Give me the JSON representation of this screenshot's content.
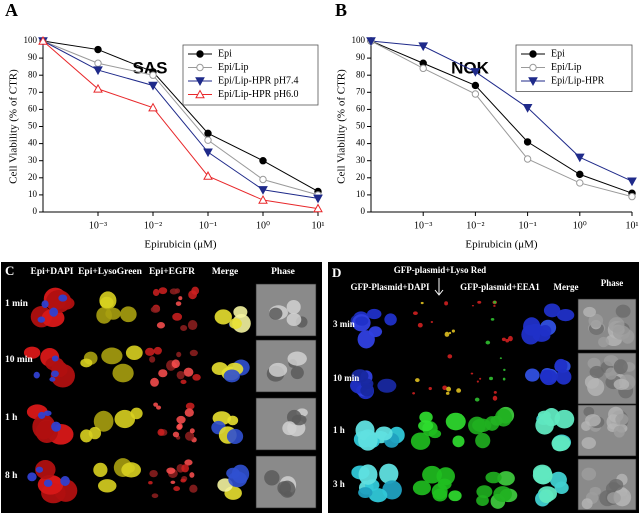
{
  "chart_data": [
    {
      "type": "line",
      "panel_label": "A",
      "title": "SAS",
      "x_label": "Epirubicin (μM)",
      "y_label": "Cell Viability (% of CTR)",
      "log_x": true,
      "legend": "upper right",
      "x": [
        0.0001,
        0.001,
        0.01,
        0.1,
        1,
        10
      ],
      "xlim": [
        0.0001,
        10
      ],
      "xticks": [
        {
          "value": 0.001,
          "label": "10⁻³"
        },
        {
          "value": 0.01,
          "label": "10⁻²"
        },
        {
          "value": 0.1,
          "label": "10⁻¹"
        },
        {
          "value": 1,
          "label": "10⁰"
        },
        {
          "value": 10,
          "label": "10¹"
        }
      ],
      "ylim": [
        0,
        100
      ],
      "yticks": [
        0,
        10,
        20,
        30,
        40,
        50,
        60,
        70,
        80,
        90,
        100
      ],
      "series": [
        {
          "name": "Epi",
          "color": "#000000",
          "marker": "circle-filled",
          "values": [
            100,
            95,
            82,
            46,
            30,
            12
          ]
        },
        {
          "name": "Epi/Lip",
          "color": "#9a9a9a",
          "marker": "circle-open",
          "values": [
            100,
            87,
            80,
            42,
            19,
            10
          ]
        },
        {
          "name": "Epi/Lip-HPR pH7.4",
          "color": "#1f2a8a",
          "marker": "triangle-down-filled",
          "values": [
            100,
            83,
            74,
            35,
            13,
            8
          ]
        },
        {
          "name": "Epi/Lip-HPR pH6.0",
          "color": "#e8282b",
          "marker": "triangle-up-open",
          "values": [
            100,
            72,
            61,
            21,
            7,
            2
          ]
        }
      ]
    },
    {
      "type": "line",
      "panel_label": "B",
      "title": "NOK",
      "x_label": "Epirubicin (μM)",
      "y_label": "Cell Viability (% of CTR)",
      "log_x": true,
      "legend": "upper right",
      "x": [
        0.0001,
        0.001,
        0.01,
        0.1,
        1,
        10
      ],
      "xlim": [
        0.0001,
        10
      ],
      "xticks": [
        {
          "value": 0.001,
          "label": "10⁻³"
        },
        {
          "value": 0.01,
          "label": "10⁻²"
        },
        {
          "value": 0.1,
          "label": "10⁻¹"
        },
        {
          "value": 1,
          "label": "10⁰"
        },
        {
          "value": 10,
          "label": "10¹"
        }
      ],
      "ylim": [
        0,
        100
      ],
      "yticks": [
        0,
        10,
        20,
        30,
        40,
        50,
        60,
        70,
        80,
        90,
        100
      ],
      "series": [
        {
          "name": "Epi",
          "color": "#000000",
          "marker": "circle-filled",
          "values": [
            100,
            87,
            74,
            41,
            22,
            11
          ]
        },
        {
          "name": "Epi/Lip",
          "color": "#9a9a9a",
          "marker": "circle-open",
          "values": [
            100,
            84,
            69,
            31,
            17,
            9
          ]
        },
        {
          "name": "Epi/Lip-HPR",
          "color": "#1f2a8a",
          "marker": "triangle-down-filled",
          "values": [
            100,
            97,
            82,
            61,
            32,
            18
          ]
        }
      ]
    }
  ],
  "panel_c": {
    "label": "C",
    "columns": [
      "Epi+DAPI",
      "Epi+LysoGreen",
      "Epi+EGFR",
      "Merge",
      "Phase"
    ],
    "rows": [
      "1 min",
      "10 min",
      "1 h",
      "8 h"
    ]
  },
  "panel_d": {
    "label": "D",
    "columns": [
      "GFP-Plasmid+DAPI",
      "GFP-plasmid+Lyso Red",
      "GFP-plasmid+EEA1",
      "Merge",
      "Phase"
    ],
    "rows": [
      "3 min",
      "10 min",
      "1 h",
      "3 h"
    ]
  }
}
